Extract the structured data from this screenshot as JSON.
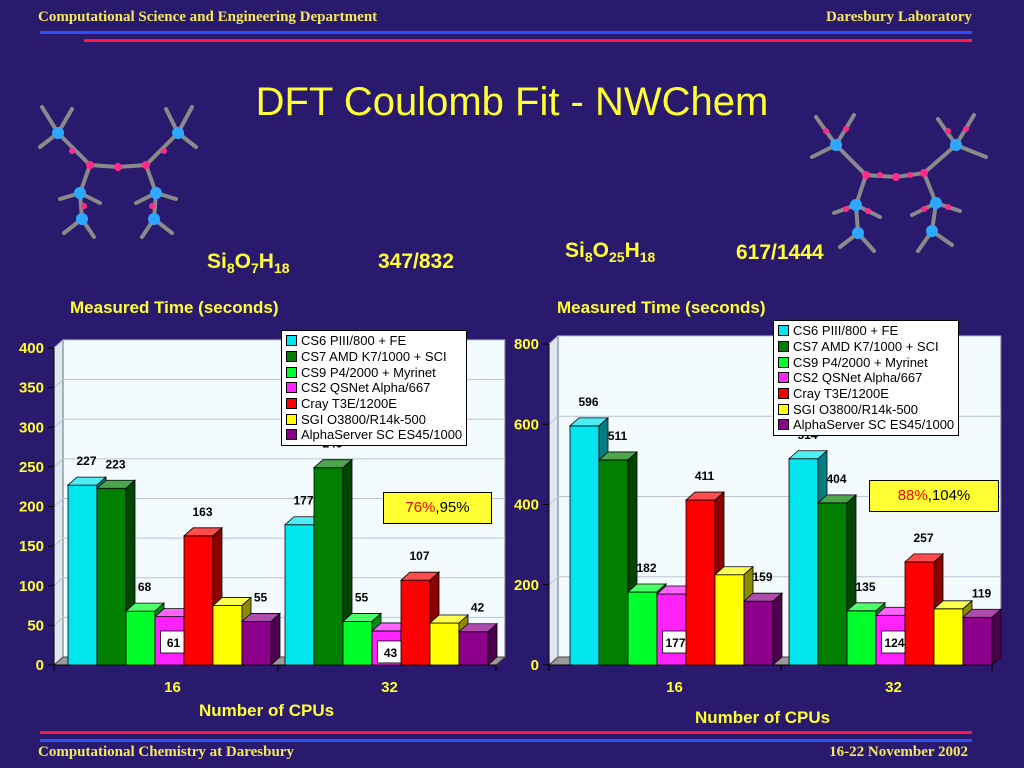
{
  "header": {
    "left": "Computational Science and Engineering Department",
    "right": "Daresbury Laboratory"
  },
  "footer": {
    "left": "Computational Chemistry at Daresbury",
    "right": "16-22 November 2002"
  },
  "title": "DFT Coulomb Fit - NWChem",
  "systems": [
    {
      "formula": [
        [
          "Si",
          "8"
        ],
        [
          "O",
          "7"
        ],
        [
          "H",
          "18"
        ]
      ],
      "count": "347/832"
    },
    {
      "formula": [
        [
          "Si",
          "8"
        ],
        [
          "O",
          "25"
        ],
        [
          "H",
          "18"
        ]
      ],
      "count": "617/1444"
    }
  ],
  "colors": {
    "series": [
      "#00e5ee",
      "#007f00",
      "#00ff2a",
      "#ff22ff",
      "#ff0000",
      "#ffff00",
      "#8c008c"
    ],
    "plot_background": "#f4fbff",
    "text": "#ffff33"
  },
  "legend_entries": [
    "CS6 PIII/800 + FE",
    "CS7 AMD K7/1000 + SCI",
    "CS9 P4/2000 + Myrinet",
    "CS2 QSNet Alpha/667",
    "Cray T3E/1200E",
    "SGI O3800/R14k-500",
    "AlphaServer SC ES45/1000"
  ],
  "chart_data": [
    {
      "type": "bar",
      "title": "Measured Time (seconds)",
      "xlabel": "Number of CPUs",
      "ylabel": "",
      "categories": [
        "16",
        "32"
      ],
      "ylim": [
        0,
        400
      ],
      "yticks": [
        0,
        50,
        100,
        150,
        200,
        250,
        300,
        350,
        400
      ],
      "legend_position": "top-right",
      "annotation": [
        "76%",
        ",95%"
      ],
      "series": [
        {
          "name": "CS6 PIII/800 + FE",
          "values": [
            227,
            177
          ]
        },
        {
          "name": "CS7 AMD K7/1000 + SCI",
          "values": [
            223,
            249
          ]
        },
        {
          "name": "CS9 P4/2000 + Myrinet",
          "values": [
            68,
            55
          ]
        },
        {
          "name": "CS2 QSNet Alpha/667",
          "values": [
            61,
            43
          ]
        },
        {
          "name": "Cray T3E/1200E",
          "values": [
            163,
            107
          ]
        },
        {
          "name": "SGI O3800/R14k-500",
          "values": [
            75,
            53
          ]
        },
        {
          "name": "AlphaServer SC ES45/1000",
          "values": [
            55,
            42
          ]
        }
      ],
      "data_labels": [
        [
          "227",
          "177"
        ],
        [
          "223",
          "249"
        ],
        [
          "68",
          "55"
        ],
        [
          "61",
          "43"
        ],
        [
          "163",
          "107"
        ],
        [
          "",
          ""
        ],
        [
          "55",
          "42"
        ]
      ]
    },
    {
      "type": "bar",
      "title": "Measured Time (seconds)",
      "xlabel": "Number of CPUs",
      "ylabel": "",
      "categories": [
        "16",
        "32"
      ],
      "ylim": [
        0,
        800
      ],
      "yticks": [
        0,
        200,
        400,
        600,
        800
      ],
      "legend_position": "top-right",
      "annotation": [
        "88%",
        ",104%"
      ],
      "series": [
        {
          "name": "CS6 PIII/800 + FE",
          "values": [
            596,
            514
          ]
        },
        {
          "name": "CS7 AMD K7/1000 + SCI",
          "values": [
            511,
            404
          ]
        },
        {
          "name": "CS9 P4/2000 + Myrinet",
          "values": [
            182,
            135
          ]
        },
        {
          "name": "CS2 QSNet Alpha/667",
          "values": [
            177,
            124
          ]
        },
        {
          "name": "Cray T3E/1200E",
          "values": [
            411,
            257
          ]
        },
        {
          "name": "SGI O3800/R14k-500",
          "values": [
            225,
            140
          ]
        },
        {
          "name": "AlphaServer SC ES45/1000",
          "values": [
            159,
            119
          ]
        }
      ],
      "data_labels": [
        [
          "596",
          "514"
        ],
        [
          "511",
          "404"
        ],
        [
          "182",
          "135"
        ],
        [
          "177",
          "124"
        ],
        [
          "411",
          "257"
        ],
        [
          "",
          ""
        ],
        [
          "159",
          "119"
        ]
      ]
    }
  ]
}
